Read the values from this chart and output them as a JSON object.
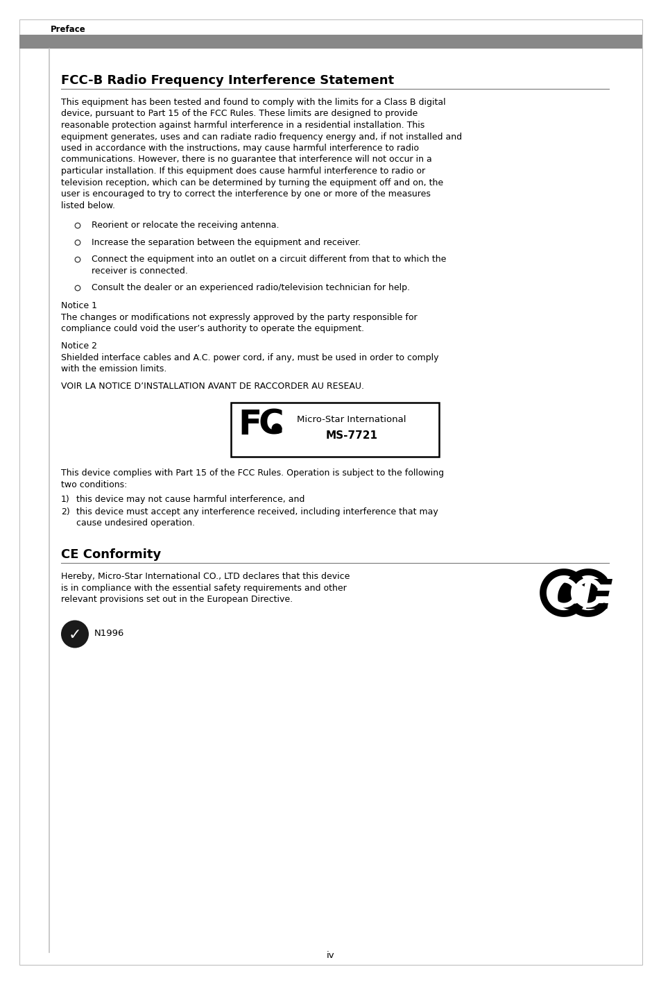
{
  "page_label": "Preface",
  "page_number": "iv",
  "bg_color": "#ffffff",
  "header_bar_color": "#888888",
  "title_fcc": "FCC-B Radio Frequency Interference Statement",
  "fcc_body": "This equipment has been tested and found to comply with the limits for a Class B digital device, pursuant to Part 15 of the FCC Rules. These limits are designed to provide reasonable protection against harmful interference in a residential installation. This equipment generates, uses and can radiate radio frequency energy and, if not installed and used in accordance with the instructions, may cause harmful interference to radio communications. However, there is no guarantee that interference will not occur in a particular installation. If this equipment does cause harmful interference to radio or television reception, which can be determined by turning the equipment off and on, the user is encouraged to try to correct the interference by one or more of the measures listed below.",
  "bullets": [
    "Reorient or relocate the receiving antenna.",
    "Increase the separation between the equipment and receiver.",
    "Connect the equipment into an outlet on a circuit different from that to which the receiver is connected.",
    "Consult the dealer or an experienced radio/television technician for help."
  ],
  "notice1_label": "Notice 1",
  "notice1_text": "The changes or modifications not expressly approved by the party responsible for compliance could void the user’s authority to operate the equipment.",
  "notice2_label": "Notice 2",
  "notice2_text": "Shielded interface cables and A.C. power cord, if any, must be used in order to comply with the emission limits.",
  "voir_text": "VOIR LA NOTICE D’INSTALLATION AVANT DE RACCORDER AU RESEAU.",
  "fcc_logo_line1": "Micro-Star International",
  "fcc_logo_line2": "MS-7721",
  "fcc_conditions_intro": "This device complies with Part 15 of the FCC Rules. Operation is subject to the following two conditions:",
  "fcc_conditions": [
    "this device may not cause harmful interference, and",
    "this device must accept any interference received, including interference that may cause undesired operation."
  ],
  "title_ce": "CE Conformity",
  "ce_body": "Hereby, Micro-Star International CO., LTD declares that this device is in compliance with the essential safety requirements and other relevant provisions set out in the European Directive.",
  "n1996": "N1996"
}
